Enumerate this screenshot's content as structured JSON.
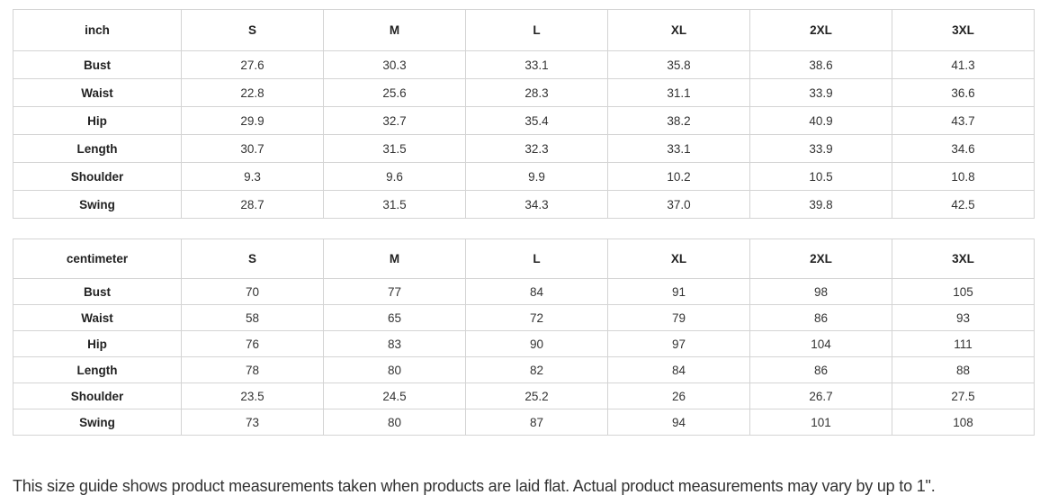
{
  "tables": [
    {
      "unit": "inch",
      "sizes": [
        "S",
        "M",
        "L",
        "XL",
        "2XL",
        "3XL"
      ],
      "rows": [
        {
          "label": "Bust",
          "values": [
            "27.6",
            "30.3",
            "33.1",
            "35.8",
            "38.6",
            "41.3"
          ]
        },
        {
          "label": "Waist",
          "values": [
            "22.8",
            "25.6",
            "28.3",
            "31.1",
            "33.9",
            "36.6"
          ]
        },
        {
          "label": "Hip",
          "values": [
            "29.9",
            "32.7",
            "35.4",
            "38.2",
            "40.9",
            "43.7"
          ]
        },
        {
          "label": "Length",
          "values": [
            "30.7",
            "31.5",
            "32.3",
            "33.1",
            "33.9",
            "34.6"
          ]
        },
        {
          "label": "Shoulder",
          "values": [
            "9.3",
            "9.6",
            "9.9",
            "10.2",
            "10.5",
            "10.8"
          ]
        },
        {
          "label": "Swing",
          "values": [
            "28.7",
            "31.5",
            "34.3",
            "37.0",
            "39.8",
            "42.5"
          ]
        }
      ]
    },
    {
      "unit": "centimeter",
      "sizes": [
        "S",
        "M",
        "L",
        "XL",
        "2XL",
        "3XL"
      ],
      "rows": [
        {
          "label": "Bust",
          "values": [
            "70",
            "77",
            "84",
            "91",
            "98",
            "105"
          ]
        },
        {
          "label": "Waist",
          "values": [
            "58",
            "65",
            "72",
            "79",
            "86",
            "93"
          ]
        },
        {
          "label": "Hip",
          "values": [
            "76",
            "83",
            "90",
            "97",
            "104",
            "111"
          ]
        },
        {
          "label": "Length",
          "values": [
            "78",
            "80",
            "82",
            "84",
            "86",
            "88"
          ]
        },
        {
          "label": "Shoulder",
          "values": [
            "23.5",
            "24.5",
            "25.2",
            "26",
            "26.7",
            "27.5"
          ]
        },
        {
          "label": "Swing",
          "values": [
            "73",
            "80",
            "87",
            "94",
            "101",
            "108"
          ]
        }
      ]
    }
  ],
  "note": "This size guide shows product measurements taken when products are laid flat. Actual product measurements may vary by up to 1\"."
}
